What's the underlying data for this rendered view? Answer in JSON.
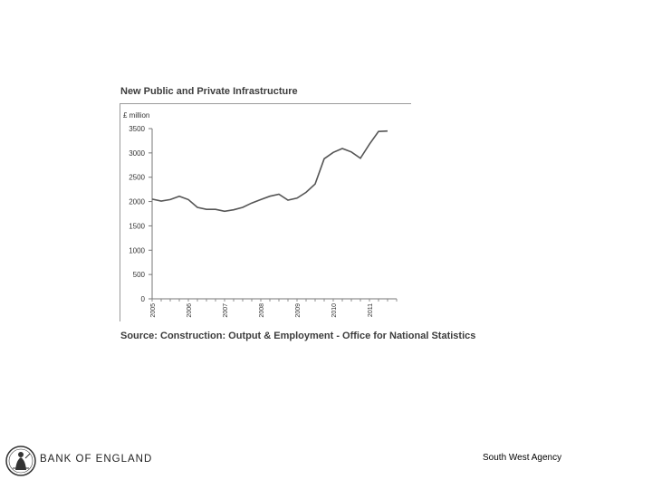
{
  "chart_data": {
    "type": "line",
    "title": "New Public and Private Infrastructure",
    "ylabel": "£ million",
    "xlabel": "",
    "ylim": [
      0,
      3500
    ],
    "yticks": [
      0,
      500,
      1000,
      1500,
      2000,
      2500,
      3000,
      3500
    ],
    "ytick_labels": [
      "0",
      "500",
      "1000",
      "1500",
      "2000",
      "2500",
      "3000",
      "3500"
    ],
    "xlim": [
      2005,
      2011.75
    ],
    "xticks": [
      2005,
      2006,
      2007,
      2008,
      2009,
      2010,
      2011
    ],
    "xtick_labels": [
      "2005",
      "2006",
      "2007",
      "2008",
      "2009",
      "2010",
      "2011"
    ],
    "grid": false,
    "legend": "none",
    "line_color": "#555555",
    "series": [
      {
        "x": [
          2005.0,
          2005.25,
          2005.5,
          2005.75,
          2006.0,
          2006.25,
          2006.5,
          2006.75,
          2007.0,
          2007.25,
          2007.5,
          2007.75,
          2008.0,
          2008.25,
          2008.5,
          2008.75,
          2009.0,
          2009.25,
          2009.5,
          2009.75,
          2010.0,
          2010.25,
          2010.5,
          2010.75,
          2011.0,
          2011.25,
          2011.5
        ],
        "y": [
          2050,
          2010,
          2040,
          2110,
          2040,
          1880,
          1840,
          1840,
          1800,
          1830,
          1880,
          1970,
          2040,
          2110,
          2150,
          2030,
          2070,
          2190,
          2360,
          2880,
          3010,
          3090,
          3020,
          2890,
          3180,
          3440,
          3450
        ]
      }
    ]
  },
  "source_text": "Source: Construction: Output & Employment - Office for National Statistics",
  "footer": {
    "brand": "BANK OF ENGLAND",
    "agency": "South West Agency"
  }
}
